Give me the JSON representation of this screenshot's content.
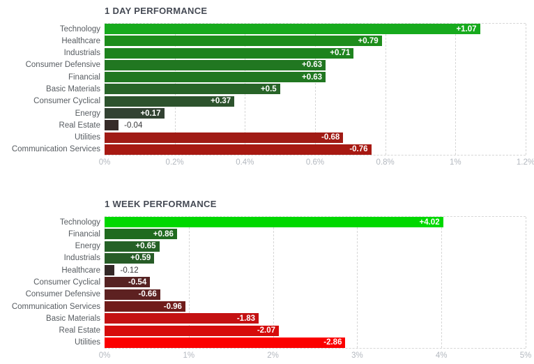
{
  "colors": {
    "background": "#ffffff",
    "title_text": "#454a54",
    "category_label": "#575c61",
    "tick_label": "#b3b8bf",
    "value_label_inside": "#ffffff",
    "value_label_outside": "#3a3a3c",
    "gridline": "#d6d6d6"
  },
  "chart_data": [
    {
      "type": "bar",
      "orientation": "horizontal",
      "title": "1 DAY PERFORMANCE",
      "categories": [
        "Technology",
        "Healthcare",
        "Industrials",
        "Consumer Defensive",
        "Financial",
        "Basic Materials",
        "Consumer Cyclical",
        "Energy",
        "Real Estate",
        "Utilities",
        "Communication Services"
      ],
      "values": [
        1.07,
        0.79,
        0.71,
        0.63,
        0.63,
        0.5,
        0.37,
        0.17,
        -0.04,
        -0.68,
        -0.76
      ],
      "value_labels": [
        "+1.07",
        "+0.79",
        "+0.71",
        "+0.63",
        "+0.63",
        "+0.5",
        "+0.37",
        "+0.17",
        "-0.04",
        "-0.68",
        "-0.76"
      ],
      "bar_colors": [
        "#17aa1d",
        "#1d8d1b",
        "#1e831e",
        "#217721",
        "#217721",
        "#286428",
        "#2d532d",
        "#324232",
        "#362b28",
        "#a01b15",
        "#a71912"
      ],
      "xlabel_ticks": [
        "0%",
        "0.2%",
        "0.4%",
        "0.6%",
        "0.8%",
        "1%",
        "1.2%"
      ],
      "xlim": [
        0,
        1.2
      ],
      "grid": "dashed-vertical",
      "bar_length_rule": "absolute value of percent change",
      "legend": "none"
    },
    {
      "type": "bar",
      "orientation": "horizontal",
      "title": "1 WEEK PERFORMANCE",
      "categories": [
        "Technology",
        "Financial",
        "Energy",
        "Industrials",
        "Healthcare",
        "Consumer Cyclical",
        "Consumer Defensive",
        "Communication Services",
        "Basic Materials",
        "Real Estate",
        "Utilities"
      ],
      "values": [
        4.02,
        0.86,
        0.65,
        0.59,
        -0.12,
        -0.54,
        -0.66,
        -0.96,
        -1.83,
        -2.07,
        -2.86
      ],
      "value_labels": [
        "+4.02",
        "+0.86",
        "+0.65",
        "+0.59",
        "-0.12",
        "-0.54",
        "-0.66",
        "-0.96",
        "-1.83",
        "-2.07",
        "-2.86"
      ],
      "bar_colors": [
        "#00d800",
        "#206b1f",
        "#256126",
        "#275c27",
        "#342827",
        "#562323",
        "#5d2121",
        "#701c1a",
        "#c41112",
        "#d60c0b",
        "#fb0100"
      ],
      "xlabel_ticks": [
        "0%",
        "1%",
        "2%",
        "3%",
        "4%",
        "5%"
      ],
      "xlim": [
        0,
        5
      ],
      "grid": "dashed-vertical",
      "bar_length_rule": "absolute value of percent change",
      "legend": "none"
    }
  ]
}
